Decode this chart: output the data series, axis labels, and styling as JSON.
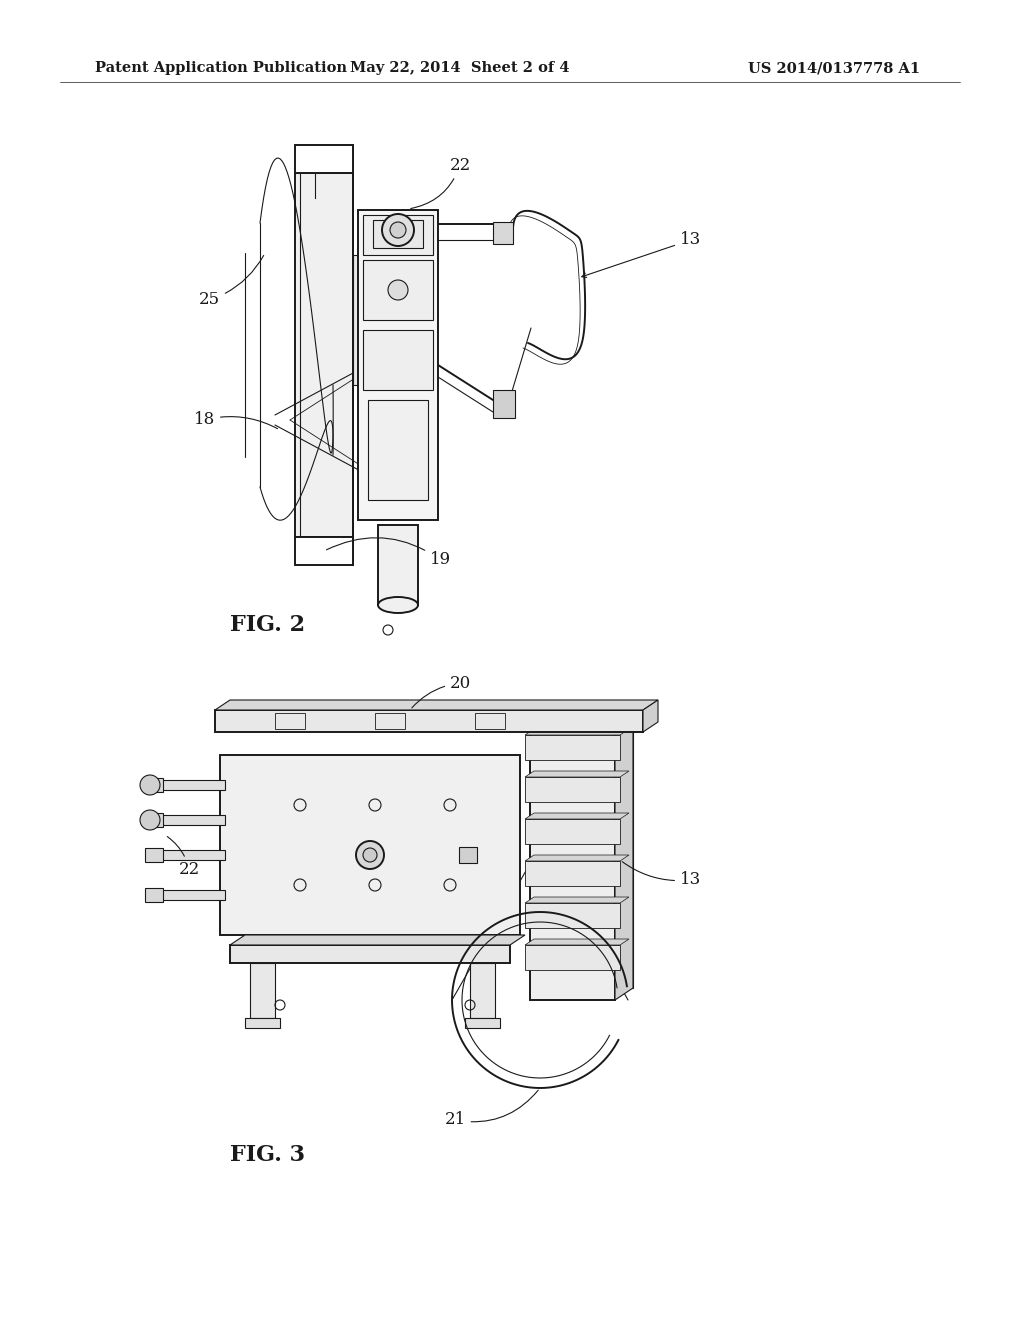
{
  "background_color": "#ffffff",
  "header_left": "Patent Application Publication",
  "header_center": "May 22, 2014  Sheet 2 of 4",
  "header_right": "US 2014/0137778 A1",
  "header_fontsize": 10.5,
  "fig2_label": "FIG. 2",
  "fig3_label": "FIG. 3",
  "annotation_fontsize": 12,
  "label_fontsize": 16
}
